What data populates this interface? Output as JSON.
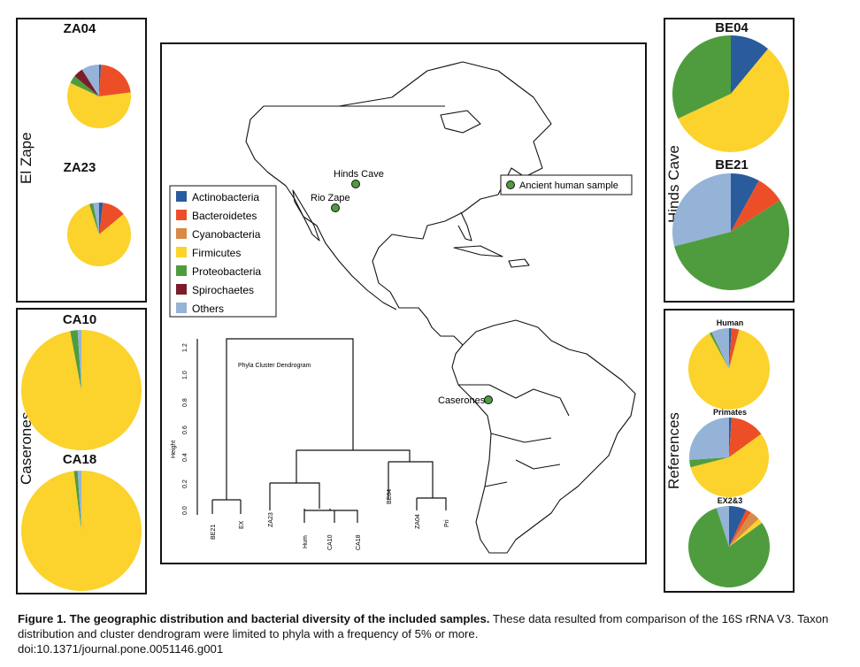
{
  "colors": {
    "Actinobacteria": "#2a5b9c",
    "Bacteroidetes": "#ec4f27",
    "Cyanobacteria": "#d88a47",
    "Firmicutes": "#fcd22c",
    "Proteobacteria": "#4f9c3f",
    "Spirochaetes": "#7b1c2a",
    "Others": "#95b3d7"
  },
  "legend": {
    "items": [
      "Actinobacteria",
      "Bacteroidetes",
      "Cyanobacteria",
      "Firmicutes",
      "Proteobacteria",
      "Spirochaetes",
      "Others"
    ]
  },
  "groups": {
    "el_zape": "El Zape",
    "caserones": "Caserones",
    "hinds_cave": "Hinds Cave",
    "references": "References"
  },
  "map": {
    "sites": [
      {
        "name": "Hinds Cave"
      },
      {
        "name": "Rio Zape"
      },
      {
        "name": "Caserones"
      }
    ],
    "key_label": "Ancient human sample"
  },
  "dendrogram": {
    "title": "Phyla Cluster Dendrogram",
    "ylabel": "Height",
    "ticks": [
      "0.0",
      "0.2",
      "0.4",
      "0.6",
      "0.8",
      "1.0",
      "1.2"
    ],
    "leaves": [
      "BE21",
      "EX",
      "ZA23",
      "Hum",
      "CA10",
      "CA18",
      "BE04",
      "ZA04",
      "Pri"
    ]
  },
  "chart_data": [
    {
      "type": "pie",
      "title": "ZA04",
      "labels": [
        "Actinobacteria",
        "Bacteroidetes",
        "Firmicutes",
        "Proteobacteria",
        "Spirochaetes",
        "Others"
      ],
      "values": [
        1,
        22,
        59,
        4,
        5,
        9
      ]
    },
    {
      "type": "pie",
      "title": "ZA23",
      "labels": [
        "Actinobacteria",
        "Bacteroidetes",
        "Firmicutes",
        "Proteobacteria",
        "Others"
      ],
      "values": [
        2,
        12,
        81,
        2,
        3
      ]
    },
    {
      "type": "pie",
      "title": "CA10",
      "labels": [
        "Firmicutes",
        "Proteobacteria",
        "Others"
      ],
      "values": [
        97,
        2,
        1
      ]
    },
    {
      "type": "pie",
      "title": "CA18",
      "labels": [
        "Firmicutes",
        "Proteobacteria",
        "Others"
      ],
      "values": [
        98,
        1,
        1
      ]
    },
    {
      "type": "pie",
      "title": "BE04",
      "labels": [
        "Actinobacteria",
        "Firmicutes",
        "Proteobacteria"
      ],
      "values": [
        11,
        57,
        32
      ]
    },
    {
      "type": "pie",
      "title": "BE21",
      "labels": [
        "Actinobacteria",
        "Bacteroidetes",
        "Proteobacteria",
        "Others"
      ],
      "values": [
        8,
        8,
        55,
        29
      ]
    },
    {
      "type": "pie",
      "title": "Human",
      "labels": [
        "Actinobacteria",
        "Bacteroidetes",
        "Firmicutes",
        "Proteobacteria",
        "Others"
      ],
      "values": [
        1,
        3,
        88,
        1,
        7
      ]
    },
    {
      "type": "pie",
      "title": "Primates",
      "labels": [
        "Actinobacteria",
        "Bacteroidetes",
        "Firmicutes",
        "Proteobacteria",
        "Others"
      ],
      "values": [
        1,
        14,
        56,
        3,
        26
      ]
    },
    {
      "type": "pie",
      "title": "EX2&3",
      "labels": [
        "Actinobacteria",
        "Bacteroidetes",
        "Cyanobacteria",
        "Firmicutes",
        "Proteobacteria",
        "Others"
      ],
      "values": [
        7,
        2,
        4,
        2,
        80,
        5
      ]
    }
  ],
  "caption": {
    "bold": "Figure 1. The geographic distribution and bacterial diversity of the included samples.",
    "rest": " These data resulted from comparison of the 16S rRNA V3. Taxon distribution and cluster dendrogram were limited to phyla with a frequency of 5% or more.",
    "doi": "doi:10.1371/journal.pone.0051146.g001"
  }
}
